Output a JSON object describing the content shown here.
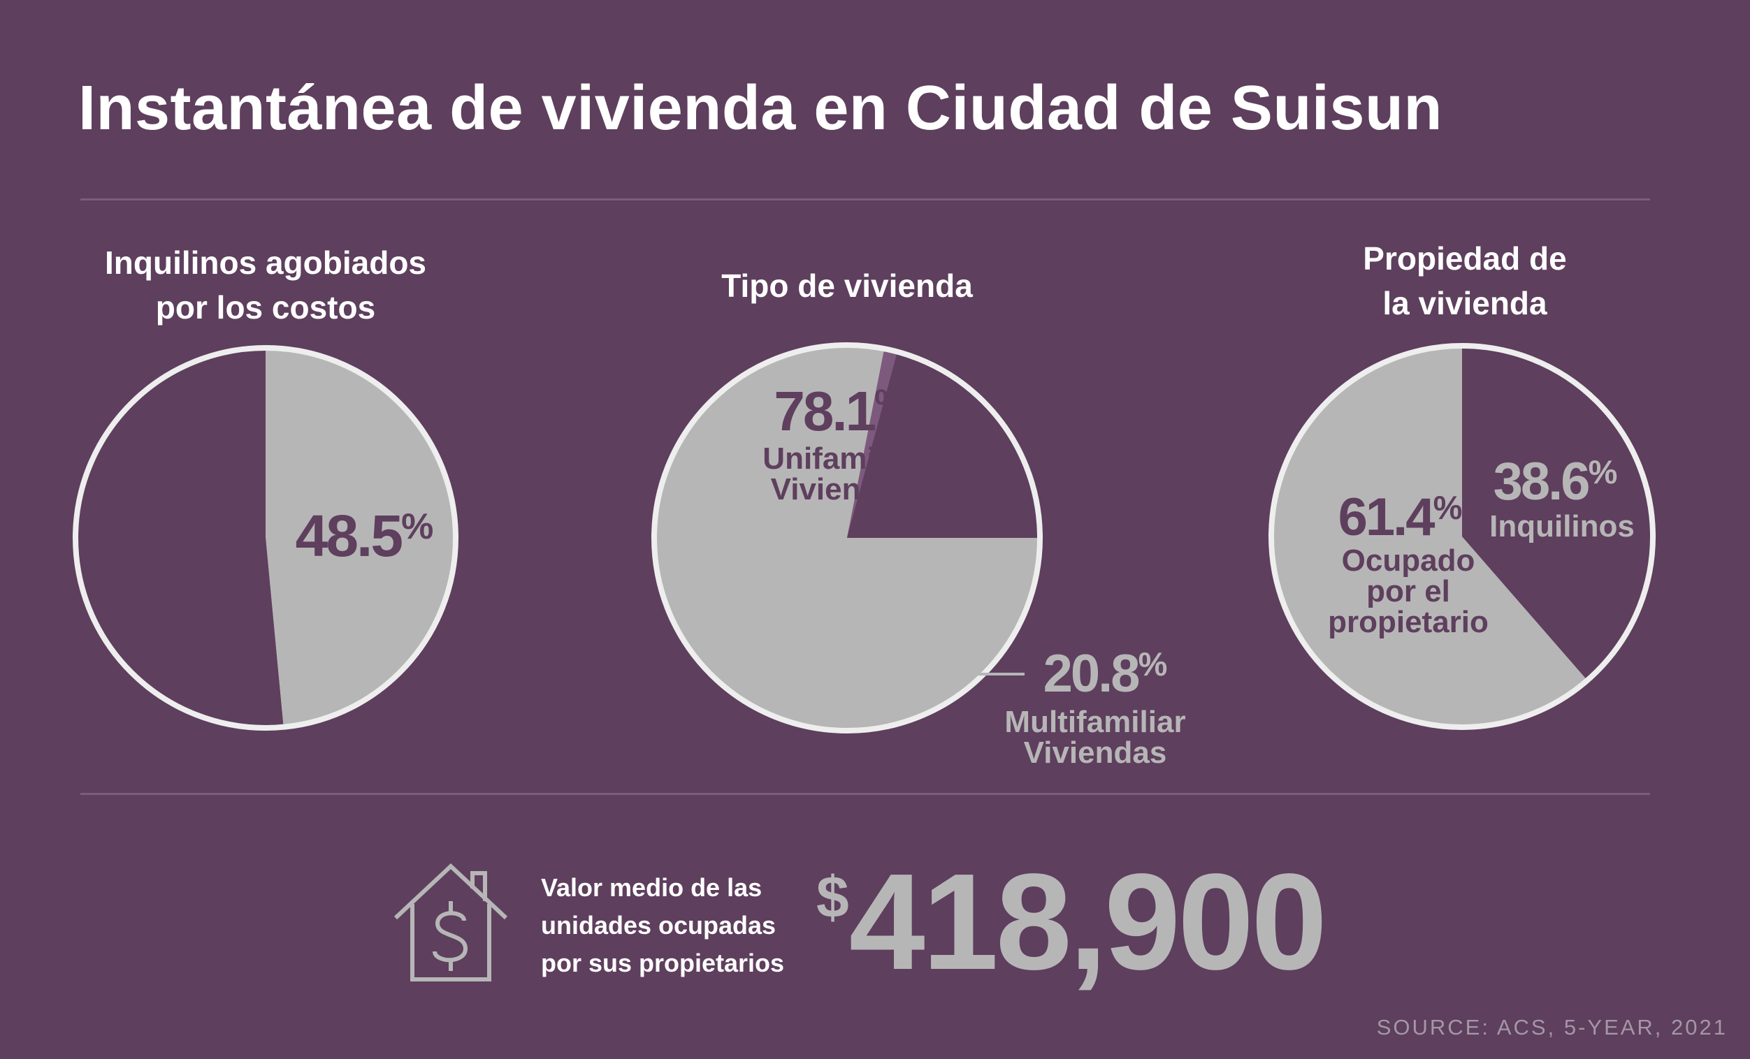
{
  "title": "Instantánea de vivienda en Ciudad de Suisun",
  "colors": {
    "background": "#5e3f5d",
    "slice_light": "#b7b6b7",
    "slice_dark": "#5e3f5d",
    "ring": "#eeeeee",
    "sliver": "#7d5a7d"
  },
  "chart_data": [
    {
      "type": "pie",
      "title": [
        "Inquilinos agobiados",
        "por los costos"
      ],
      "slices": [
        {
          "label": "",
          "value": 48.5,
          "color": "#b7b6b7"
        },
        {
          "label": "",
          "value": 51.5,
          "color": "#5e3f5d"
        }
      ],
      "annotations": [
        {
          "value_text": "48.5",
          "unit": "%",
          "lines": []
        }
      ]
    },
    {
      "type": "pie",
      "title": [
        "Tipo de vivienda"
      ],
      "slices": [
        {
          "label": "Unifamiliar Viviendas",
          "value": 78.1,
          "color": "#b7b6b7"
        },
        {
          "label": "Multifamiliar Viviendas",
          "value": 20.8,
          "color": "#5e3f5d"
        },
        {
          "label": "",
          "value": 1.1,
          "color": "#7d5a7d"
        }
      ],
      "annotations": [
        {
          "value_text": "78.1",
          "unit": "%",
          "lines": [
            "Unifamiliar",
            "Viviendas"
          ]
        },
        {
          "value_text": "20.8",
          "unit": "%",
          "lines": [
            "Multifamiliar",
            "Viviendas"
          ]
        }
      ]
    },
    {
      "type": "pie",
      "title": [
        "Propiedad de",
        "la vivienda"
      ],
      "slices": [
        {
          "label": "Inquilinos",
          "value": 38.6,
          "color": "#5e3f5d"
        },
        {
          "label": "Ocupado por el propietario",
          "value": 61.4,
          "color": "#b7b6b7"
        }
      ],
      "annotations": [
        {
          "value_text": "38.6",
          "unit": "%",
          "lines": [
            "Inquilinos"
          ]
        },
        {
          "value_text": "61.4",
          "unit": "%",
          "lines": [
            "Ocupado",
            "por el",
            "propietario"
          ]
        }
      ]
    }
  ],
  "median": {
    "label_lines": [
      "Valor medio de las",
      "unidades ocupadas",
      "por sus propietarios"
    ],
    "currency": "$",
    "value": "418,900",
    "icon": "house-dollar-icon"
  },
  "source": "SOURCE: ACS, 5-YEAR, 2021"
}
